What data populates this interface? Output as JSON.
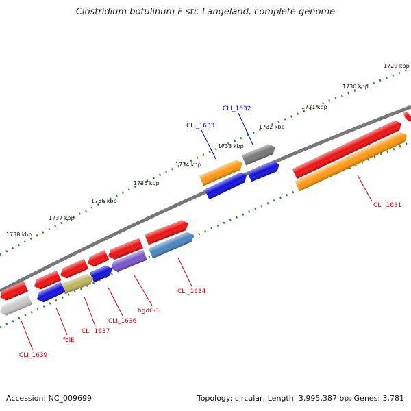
{
  "title": "Clostridium botulinum F str. Langeland, complete genome",
  "footer": {
    "accession": "Accession: NC_009699",
    "summary": "Topology: circular; Length: 3,995,387 bp; Genes: 3,781"
  },
  "colors": {
    "red": "#ee1111",
    "blue": "#1111dd",
    "orange": "#ff9911",
    "gray": "#777777",
    "olive": "#c0b460",
    "purple": "#7755cc",
    "steel": "#4a86c0",
    "silver": "#c8c8c8",
    "backbone": "#777777",
    "tick": "#228822",
    "label_red": "#cc0000",
    "label_blue": "#0000cc"
  },
  "kbp_labels": [
    "1729 kbp",
    "1730 kbp",
    "1731 kbp",
    "1732 kbp",
    "1733 kbp",
    "1734 kbp",
    "1735 kbp",
    "1736 kbp",
    "1737 kbp",
    "1738 kbp"
  ],
  "gene_labels": [
    "CLI_1632",
    "CLI_1633",
    "CLI_1631",
    "CLI_1634",
    "hgdC-1",
    "CLI_1636",
    "CLI_1637",
    "folE",
    "CLI_1639"
  ]
}
